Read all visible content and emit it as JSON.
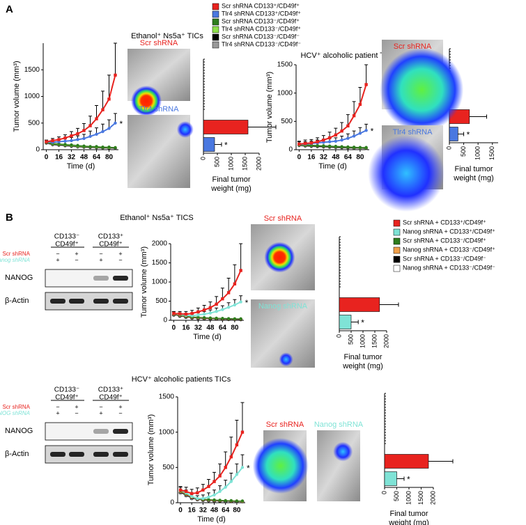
{
  "panel_labels": [
    "A",
    "B"
  ],
  "legends": [
    [
      {
        "name": "Scr shRNA CD133⁺/CD49f⁺",
        "color": "#e8231f"
      },
      {
        "name": "Tlr4 shRNA CD133⁺/CD49f⁺",
        "color": "#4a78e0"
      },
      {
        "name": "Scr shRNA CD133⁻/CD49f⁺",
        "color": "#2e7d1e"
      },
      {
        "name": "Tlr4 shRNA CD133⁻/CD49f⁺",
        "color": "#8ee04a"
      },
      {
        "name": "Scr shRNA CD133⁻/CD49f⁻",
        "color": "#000000"
      },
      {
        "name": "Tlr4 shRNA CD133⁻/CD49f⁻",
        "color": "#999999"
      }
    ],
    [
      {
        "name": "Scr shRNA + CD133⁺/CD49f⁺",
        "color": "#e8231f"
      },
      {
        "name": "Nanog shRNA + CD133⁺/CD49f⁺",
        "color": "#7fe3d6"
      },
      {
        "name": "Scr shRNA + CD133⁻/CD49f⁺",
        "color": "#2e7d1e"
      },
      {
        "name": "Nanog shRNA + CD133⁻/CD49f⁺",
        "color": "#f0a04a"
      },
      {
        "name": "Scr shRNA + CD133⁻/CD49f⁻",
        "color": "#000000"
      },
      {
        "name": "Nanog shRNA + CD133⁻/CD49f⁻",
        "color": "#ffffff"
      }
    ]
  ],
  "chart_data": [
    {
      "type": "line",
      "title": "Ethanol⁺ Ns5a⁺ TICs",
      "ylabel": "Tumor volume (mm³)",
      "xlabel": "Time (d)",
      "x": [
        0,
        8,
        16,
        24,
        32,
        40,
        48,
        56,
        64,
        72,
        80,
        88
      ],
      "xlim": [
        -4,
        92
      ],
      "xticks": [
        0,
        16,
        32,
        48,
        64,
        80
      ],
      "ylim": [
        0,
        2000
      ],
      "yticks": [
        0,
        500,
        1000,
        1500
      ],
      "annotation": "*",
      "series": [
        {
          "color": "#e8231f",
          "values": [
            150,
            170,
            190,
            220,
            260,
            300,
            360,
            450,
            580,
            750,
            950,
            1400
          ],
          "errors": [
            30,
            40,
            50,
            60,
            80,
            100,
            130,
            180,
            250,
            350,
            450,
            600
          ]
        },
        {
          "color": "#4a78e0",
          "values": [
            150,
            140,
            150,
            160,
            170,
            190,
            210,
            250,
            290,
            340,
            400,
            500
          ],
          "errors": [
            30,
            30,
            40,
            50,
            60,
            70,
            80,
            100,
            120,
            140,
            160,
            180
          ]
        },
        {
          "color": "#2e7d1e",
          "values": [
            150,
            120,
            110,
            100,
            90,
            80,
            70,
            60,
            60,
            50,
            50,
            40
          ]
        },
        {
          "color": "#8ee04a",
          "values": [
            140,
            110,
            100,
            90,
            80,
            70,
            60,
            55,
            50,
            45,
            40,
            40
          ]
        },
        {
          "color": "#000000",
          "values": [
            130,
            100,
            90,
            80,
            70,
            60,
            50,
            45,
            40,
            35,
            30,
            30
          ]
        },
        {
          "color": "#999999",
          "values": [
            120,
            90,
            80,
            70,
            60,
            50,
            45,
            40,
            35,
            30,
            30,
            25
          ]
        }
      ]
    },
    {
      "type": "bar",
      "xlabel": [
        "Final tumor",
        "weight (mg)"
      ],
      "values": [
        1600,
        400
      ],
      "errors": [
        1000,
        250
      ],
      "colors": [
        "#e8231f",
        "#4a78e0"
      ],
      "xlim": [
        0,
        2000
      ],
      "xticks": [
        0,
        500,
        1000,
        1500,
        2000
      ],
      "annotation": "*"
    },
    {
      "type": "line",
      "title": "HCV⁺ alcoholic patient TICs",
      "ylabel": "Tumor volume (mm³)",
      "xlabel": "Time (d)",
      "x": [
        0,
        8,
        16,
        24,
        32,
        40,
        48,
        56,
        64,
        72,
        80,
        88
      ],
      "xlim": [
        -4,
        92
      ],
      "xticks": [
        0,
        16,
        32,
        48,
        64,
        80
      ],
      "ylim": [
        0,
        1500
      ],
      "yticks": [
        0,
        500,
        1000,
        1500
      ],
      "annotation": "*",
      "series": [
        {
          "color": "#e8231f",
          "values": [
            100,
            110,
            120,
            140,
            170,
            210,
            260,
            330,
            420,
            600,
            800,
            1150
          ],
          "errors": [
            50,
            60,
            60,
            70,
            80,
            100,
            120,
            150,
            200,
            250,
            300,
            350
          ]
        },
        {
          "color": "#4a78e0",
          "values": [
            100,
            100,
            110,
            120,
            130,
            140,
            150,
            170,
            200,
            240,
            290,
            340
          ],
          "errors": [
            40,
            40,
            40,
            50,
            50,
            60,
            60,
            70,
            80,
            90,
            100,
            110
          ]
        },
        {
          "color": "#2e7d1e",
          "values": [
            100,
            90,
            80,
            75,
            70,
            65,
            60,
            55,
            50,
            45,
            40,
            40
          ]
        },
        {
          "color": "#8ee04a",
          "values": [
            90,
            80,
            75,
            70,
            65,
            60,
            55,
            50,
            45,
            40,
            35,
            35
          ]
        },
        {
          "color": "#000000",
          "values": [
            80,
            70,
            65,
            60,
            55,
            50,
            45,
            40,
            35,
            30,
            30,
            25
          ]
        },
        {
          "color": "#999999",
          "values": [
            70,
            60,
            55,
            50,
            45,
            40,
            35,
            30,
            30,
            25,
            25,
            20
          ]
        }
      ]
    },
    {
      "type": "bar",
      "xlabel": [
        "Final tumor",
        "weight (mg)"
      ],
      "values": [
        700,
        300
      ],
      "errors": [
        600,
        200
      ],
      "colors": [
        "#e8231f",
        "#4a78e0"
      ],
      "xlim": [
        0,
        1700
      ],
      "xticks": [
        0,
        500,
        1000,
        1500
      ],
      "annotation": "*"
    },
    {
      "type": "line",
      "title": "Ethanol⁺ Ns5a⁺ TICS",
      "ylabel": "Tumor volume (mm³)",
      "xlabel": "Time (d)",
      "x": [
        0,
        8,
        16,
        24,
        32,
        40,
        48,
        56,
        64,
        72,
        80,
        88
      ],
      "xlim": [
        -4,
        92
      ],
      "xticks": [
        0,
        16,
        32,
        48,
        64,
        80
      ],
      "ylim": [
        0,
        2000
      ],
      "yticks": [
        0,
        500,
        1000,
        1500,
        2000
      ],
      "annotation": "*",
      "series": [
        {
          "color": "#e8231f",
          "values": [
            180,
            170,
            160,
            180,
            220,
            270,
            330,
            420,
            560,
            720,
            950,
            1300
          ],
          "errors": [
            50,
            60,
            70,
            80,
            100,
            120,
            150,
            200,
            280,
            380,
            500,
            700
          ]
        },
        {
          "color": "#7fe3d6",
          "values": [
            180,
            160,
            130,
            120,
            140,
            160,
            190,
            230,
            280,
            340,
            400,
            480
          ],
          "errors": [
            40,
            40,
            50,
            50,
            60,
            70,
            80,
            90,
            100,
            120,
            140,
            160
          ]
        },
        {
          "color": "#2e7d1e",
          "values": [
            170,
            140,
            110,
            90,
            80,
            70,
            60,
            55,
            50,
            45,
            40,
            40
          ]
        },
        {
          "color": "#f0a04a",
          "values": [
            160,
            130,
            100,
            80,
            70,
            60,
            55,
            50,
            45,
            40,
            35,
            35
          ]
        },
        {
          "color": "#000000",
          "values": [
            150,
            120,
            90,
            70,
            60,
            50,
            45,
            40,
            35,
            30,
            30,
            25
          ]
        },
        {
          "color": "#ffffff",
          "values": [
            140,
            110,
            80,
            60,
            50,
            45,
            40,
            35,
            30,
            25,
            25,
            20
          ]
        }
      ]
    },
    {
      "type": "bar",
      "xlabel": [
        "Final tumor",
        "weight (mg)"
      ],
      "values": [
        1700,
        500
      ],
      "errors": [
        800,
        300
      ],
      "colors": [
        "#e8231f",
        "#7fe3d6"
      ],
      "xlim": [
        0,
        2000
      ],
      "xticks": [
        0,
        500,
        1000,
        1500,
        2000
      ],
      "annotation": "*"
    },
    {
      "type": "line",
      "title": "HCV⁺ alcoholic patients TICs",
      "ylabel": "Tumor volume (mm³)",
      "xlabel": "Time (d)",
      "x": [
        0,
        8,
        16,
        24,
        32,
        40,
        48,
        56,
        64,
        72,
        80,
        88
      ],
      "xlim": [
        -4,
        92
      ],
      "xticks": [
        0,
        16,
        32,
        48,
        64,
        80
      ],
      "ylim": [
        0,
        1500
      ],
      "yticks": [
        0,
        500,
        1000,
        1500
      ],
      "annotation": "*",
      "series": [
        {
          "color": "#e8231f",
          "values": [
            180,
            160,
            130,
            140,
            180,
            230,
            300,
            380,
            500,
            650,
            820,
            1000
          ],
          "errors": [
            50,
            60,
            60,
            70,
            80,
            100,
            130,
            170,
            220,
            280,
            350,
            420
          ]
        },
        {
          "color": "#7fe3d6",
          "values": [
            180,
            140,
            90,
            60,
            60,
            80,
            110,
            160,
            220,
            300,
            400,
            500
          ],
          "errors": [
            40,
            40,
            40,
            40,
            50,
            60,
            70,
            80,
            100,
            120,
            150,
            180
          ]
        },
        {
          "color": "#2e7d1e",
          "values": [
            170,
            130,
            90,
            60,
            50,
            45,
            40,
            35,
            30,
            30,
            25,
            25
          ]
        },
        {
          "color": "#f0a04a",
          "values": [
            160,
            120,
            80,
            55,
            45,
            40,
            35,
            30,
            30,
            25,
            25,
            20
          ]
        },
        {
          "color": "#000000",
          "values": [
            150,
            110,
            70,
            50,
            40,
            35,
            30,
            25,
            25,
            20,
            20,
            20
          ]
        },
        {
          "color": "#ffffff",
          "values": [
            140,
            100,
            60,
            45,
            35,
            30,
            25,
            25,
            20,
            20,
            15,
            15
          ]
        }
      ]
    },
    {
      "type": "bar",
      "xlabel": [
        "Final tumor",
        "weight (mg)"
      ],
      "values": [
        1800,
        500
      ],
      "errors": [
        1000,
        300
      ],
      "colors": [
        "#e8231f",
        "#7fe3d6"
      ],
      "xlim": [
        0,
        2000
      ],
      "xticks": [
        0,
        500,
        1000,
        1500,
        2000
      ],
      "annotation": "*"
    }
  ],
  "images": [
    {
      "caption": "Scr shRNA",
      "color": "#e8231f"
    },
    {
      "caption": "Tlr4 shRNA",
      "color": "#4a78e0"
    },
    {
      "caption": "Scr shRNA",
      "color": "#e8231f"
    },
    {
      "caption": "Tlr4 shRNA",
      "color": "#4a78e0"
    },
    {
      "caption": "Scr shRNA",
      "color": "#e8231f"
    },
    {
      "caption": "Nanog shRNA",
      "color": "#7fe3d6"
    },
    {
      "caption": "Scr shRNA",
      "color": "#e8231f"
    },
    {
      "caption": "Nanog shRNA",
      "color": "#7fe3d6"
    }
  ],
  "blots": [
    {
      "headers": [
        [
          "CD133⁻",
          "CD49f⁺"
        ],
        [
          "CD133⁺",
          "CD49f⁺"
        ]
      ],
      "rows": [
        {
          "label": "Scr shRNA",
          "color": "#e8231f",
          "signs": [
            "−",
            "+",
            "−",
            "+"
          ]
        },
        {
          "label": "Nanog shRNA",
          "color": "#7fe3d6",
          "signs": [
            "+",
            "−",
            "+",
            "−"
          ]
        }
      ],
      "bands": [
        "NANOG",
        "β-Actin"
      ]
    },
    {
      "headers": [
        [
          "CD133⁻",
          "CD49f⁺"
        ],
        [
          "CD133⁺",
          "CD49f⁺"
        ]
      ],
      "rows": [
        {
          "label": "Scr shRNA",
          "color": "#e8231f",
          "signs": [
            "−",
            "+",
            "−",
            "+"
          ]
        },
        {
          "label": "NANOG shRNA",
          "color": "#7fe3d6",
          "signs": [
            "+",
            "−",
            "+",
            "−"
          ]
        }
      ],
      "bands": [
        "NANOG",
        "β-Actin"
      ]
    }
  ]
}
